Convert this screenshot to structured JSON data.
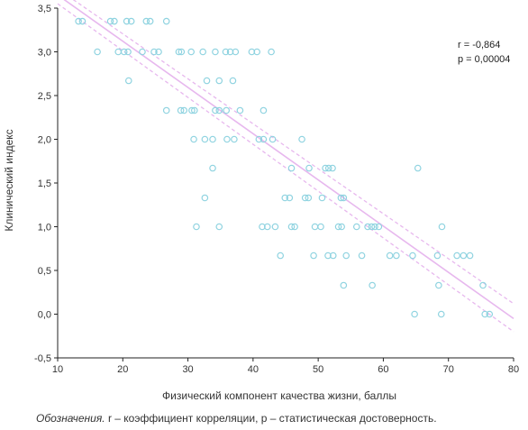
{
  "chart_data": {
    "type": "scatter",
    "xlabel": "Физический компонент качества жизни, баллы",
    "ylabel": "Клинический индекс",
    "xlim": [
      10,
      80
    ],
    "ylim": [
      -0.5,
      3.5
    ],
    "xticks": [
      "10",
      "20",
      "30",
      "40",
      "50",
      "60",
      "70",
      "80"
    ],
    "yticks": [
      "-0,5",
      "0,0",
      "0,5",
      "1,0",
      "1,5",
      "2,0",
      "2,5",
      "3,0",
      "3,5"
    ],
    "x_tick_values": [
      10,
      20,
      30,
      40,
      50,
      60,
      70,
      80
    ],
    "y_tick_values": [
      -0.5,
      0,
      0.5,
      1,
      1.5,
      2,
      2.5,
      3,
      3.5
    ],
    "stats": {
      "r": "r = -0,864",
      "p": "p = 0,00004"
    },
    "regression": {
      "x": [
        10,
        80
      ],
      "y": [
        3.65,
        -0.05
      ]
    },
    "ci_upper": {
      "x": [
        10,
        80
      ],
      "y": [
        3.72,
        0.12
      ]
    },
    "ci_lower": {
      "x": [
        10,
        80
      ],
      "y": [
        3.55,
        -0.2
      ]
    },
    "points": [
      [
        13.2,
        3.35
      ],
      [
        13.8,
        3.35
      ],
      [
        18.1,
        3.35
      ],
      [
        18.7,
        3.35
      ],
      [
        20.6,
        3.35
      ],
      [
        21.3,
        3.35
      ],
      [
        23.6,
        3.35
      ],
      [
        24.2,
        3.35
      ],
      [
        26.7,
        3.35
      ],
      [
        16.1,
        3.0
      ],
      [
        19.3,
        3.0
      ],
      [
        20.2,
        3.0
      ],
      [
        20.8,
        3.0
      ],
      [
        23.0,
        3.0
      ],
      [
        24.8,
        3.0
      ],
      [
        25.5,
        3.0
      ],
      [
        28.6,
        3.0
      ],
      [
        29.0,
        3.0
      ],
      [
        30.5,
        3.0
      ],
      [
        32.3,
        3.0
      ],
      [
        34.2,
        3.0
      ],
      [
        35.8,
        3.0
      ],
      [
        36.5,
        3.0
      ],
      [
        37.3,
        3.0
      ],
      [
        39.8,
        3.0
      ],
      [
        40.6,
        3.0
      ],
      [
        42.8,
        3.0
      ],
      [
        20.9,
        2.67
      ],
      [
        32.9,
        2.67
      ],
      [
        34.8,
        2.67
      ],
      [
        36.9,
        2.67
      ],
      [
        26.7,
        2.33
      ],
      [
        28.9,
        2.33
      ],
      [
        29.4,
        2.33
      ],
      [
        30.6,
        2.33
      ],
      [
        31.0,
        2.33
      ],
      [
        34.2,
        2.33
      ],
      [
        34.8,
        2.33
      ],
      [
        35.9,
        2.33
      ],
      [
        38.0,
        2.33
      ],
      [
        41.6,
        2.33
      ],
      [
        30.9,
        2.0
      ],
      [
        32.6,
        2.0
      ],
      [
        33.8,
        2.0
      ],
      [
        36.0,
        2.0
      ],
      [
        37.1,
        2.0
      ],
      [
        40.9,
        2.0
      ],
      [
        41.6,
        2.0
      ],
      [
        43.0,
        2.0
      ],
      [
        47.5,
        2.0
      ],
      [
        33.8,
        1.67
      ],
      [
        45.9,
        1.67
      ],
      [
        48.6,
        1.67
      ],
      [
        51.1,
        1.67
      ],
      [
        51.6,
        1.67
      ],
      [
        52.2,
        1.67
      ],
      [
        65.3,
        1.67
      ],
      [
        32.6,
        1.33
      ],
      [
        44.9,
        1.33
      ],
      [
        45.6,
        1.33
      ],
      [
        48.0,
        1.33
      ],
      [
        48.5,
        1.33
      ],
      [
        50.6,
        1.33
      ],
      [
        53.5,
        1.33
      ],
      [
        53.9,
        1.33
      ],
      [
        31.3,
        1.0
      ],
      [
        34.8,
        1.0
      ],
      [
        41.4,
        1.0
      ],
      [
        42.2,
        1.0
      ],
      [
        43.4,
        1.0
      ],
      [
        45.9,
        1.0
      ],
      [
        46.4,
        1.0
      ],
      [
        49.5,
        1.0
      ],
      [
        50.4,
        1.0
      ],
      [
        53.1,
        1.0
      ],
      [
        53.6,
        1.0
      ],
      [
        55.9,
        1.0
      ],
      [
        57.6,
        1.0
      ],
      [
        58.2,
        1.0
      ],
      [
        58.7,
        1.0
      ],
      [
        59.3,
        1.0
      ],
      [
        69.0,
        1.0
      ],
      [
        51.5,
        0.67
      ],
      [
        52.3,
        0.67
      ],
      [
        61.0,
        0.67
      ],
      [
        62.0,
        0.67
      ],
      [
        68.3,
        0.67
      ],
      [
        71.3,
        0.67
      ],
      [
        72.3,
        0.67
      ],
      [
        73.3,
        0.67
      ],
      [
        44.2,
        0.67
      ],
      [
        49.3,
        0.67
      ],
      [
        54.3,
        0.67
      ],
      [
        56.7,
        0.67
      ],
      [
        64.5,
        0.67
      ],
      [
        53.9,
        0.33
      ],
      [
        58.3,
        0.33
      ],
      [
        68.5,
        0.33
      ],
      [
        75.3,
        0.33
      ],
      [
        64.8,
        0.0
      ],
      [
        68.9,
        0.0
      ],
      [
        75.6,
        0.0
      ],
      [
        76.3,
        0.0
      ]
    ],
    "colors": {
      "points": "#8fd3e0",
      "line": "#e7b8ee",
      "axis": "#222222"
    }
  },
  "note": {
    "label": "Обозначения.",
    "text": "r – коэффициент корреляции, p – статистическая достоверность."
  }
}
